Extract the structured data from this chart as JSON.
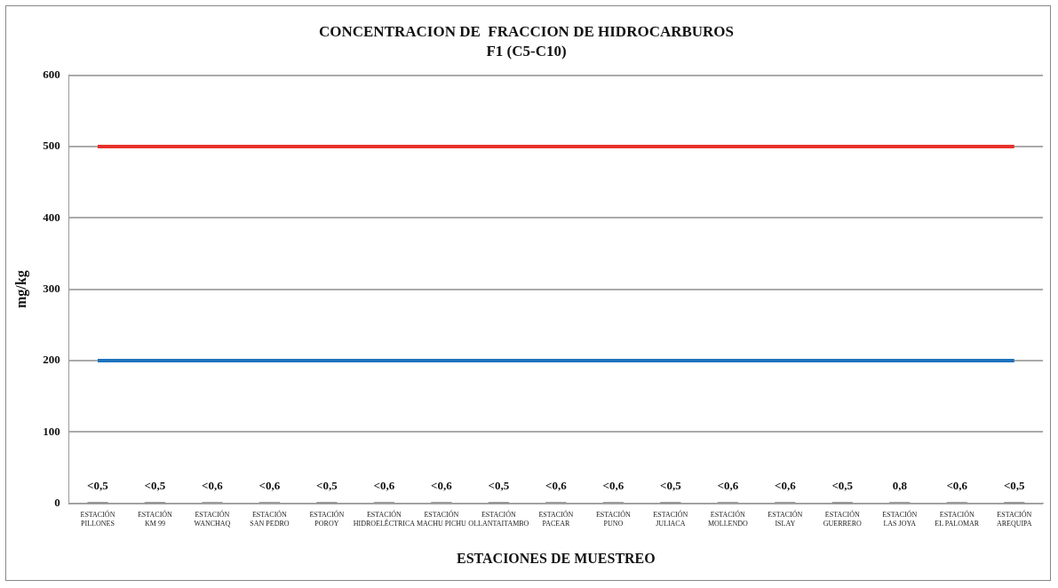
{
  "chart_data": {
    "type": "bar",
    "title": "CONCENTRACION DE  FRACCION DE HIDROCARBUROS",
    "subtitle": "F1 (C5-C10)",
    "xlabel": "ESTACIONES DE MUESTREO",
    "ylabel": "mg/kg",
    "categories": [
      "ESTACIÓN\nPILLONES",
      "ESTACIÓN\nKM 99",
      "ESTACIÓN\nWANCHAQ",
      "ESTACIÓN\nSAN PEDRO",
      "ESTACIÓN\nPOROY",
      "ESTACIÓN\nHIDROELÉCTRICA",
      "ESTACIÓN\nMACHU PICHU",
      "ESTACIÓN\nOLLANTAITAMBO",
      "ESTACIÓN\nPACEAR",
      "ESTACIÓN\nPUNO",
      "ESTACIÓN\nJULIACA",
      "ESTACIÓN\nMOLLENDO",
      "ESTACIÓN\nISLAY",
      "ESTACIÓN\nGUERRERO",
      "ESTACIÓN\nLAS JOYA",
      "ESTACIÓN\nEL PALOMAR",
      "ESTACIÓN\nAREQUIPA"
    ],
    "series": [
      {
        "color": "#404040",
        "values": [
          0.5,
          0.5,
          0.6,
          0.6,
          0.5,
          0.6,
          0.6,
          0.5,
          0.6,
          0.6,
          0.5,
          0.6,
          0.6,
          0.5,
          0.8,
          0.6,
          0.5
        ],
        "value_labels": [
          "<0,5",
          "<0,5",
          "<0,6",
          "<0,6",
          "<0,5",
          "<0,6",
          "<0,6",
          "<0,5",
          "<0,6",
          "<0,6",
          "<0,5",
          "<0,6",
          "<0,6",
          "<0,5",
          "0,8",
          "<0,6",
          "<0,5"
        ]
      },
      {
        "type": "line",
        "color": "#e8312a",
        "values": [
          500,
          500,
          500,
          500,
          500,
          500,
          500,
          500,
          500,
          500,
          500,
          500,
          500,
          500,
          500,
          500,
          500
        ]
      },
      {
        "type": "line",
        "color": "#1e73be",
        "values": [
          200,
          200,
          200,
          200,
          200,
          200,
          200,
          200,
          200,
          200,
          200,
          200,
          200,
          200,
          200,
          200,
          200
        ]
      }
    ],
    "ylim": [
      0,
      600
    ],
    "yticks": [
      0,
      100,
      200,
      300,
      400,
      500,
      600
    ],
    "grid": "y",
    "legend": false,
    "marker": "none",
    "line_style": "solid"
  }
}
